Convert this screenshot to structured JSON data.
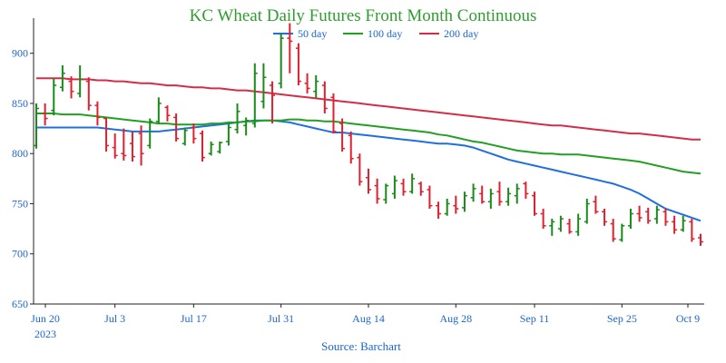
{
  "chart_data": {
    "type": "ohlc",
    "title": "KC Wheat Daily Futures Front Month Continuous",
    "source": "Source: Barchart",
    "xlabel": "",
    "ylabel": "",
    "ylim": [
      650,
      935
    ],
    "y_ticks": [
      650,
      700,
      750,
      800,
      850,
      900
    ],
    "x_ticks": [
      "Jun 20",
      "Jul 3",
      "Jul 17",
      "Jul 31",
      "Aug 14",
      "Aug 28",
      "Sep 11",
      "Sep 25",
      "Oct 9"
    ],
    "x_sub_label": "2023",
    "grid": false,
    "legend_position": "top",
    "colors": {
      "up": "#1a8a1a",
      "down": "#e0202e",
      "ma50": "#1f6fe0",
      "ma100": "#22a022",
      "ma200": "#d42d48",
      "title": "#2e9e2e",
      "text": "#1a66cc"
    },
    "moving_averages": [
      {
        "name": "50 day",
        "color": "#1f6fe0",
        "values": [
          826,
          826,
          826,
          826,
          826,
          826,
          826,
          826,
          825,
          824,
          823,
          822,
          822,
          822,
          822,
          823,
          824,
          825,
          826,
          827,
          828,
          829,
          830,
          831,
          832,
          833,
          833,
          833,
          832,
          831,
          829,
          827,
          825,
          823,
          821,
          821,
          820,
          819,
          818,
          817,
          816,
          815,
          814,
          813,
          812,
          811,
          810,
          810,
          809,
          808,
          806,
          803,
          800,
          797,
          794,
          792,
          790,
          788,
          786,
          784,
          782,
          780,
          778,
          776,
          774,
          772,
          770,
          767,
          764,
          760,
          755,
          750,
          745,
          742,
          739,
          736,
          733
        ]
      },
      {
        "name": "100 day",
        "color": "#22a022",
        "values": [
          840,
          840,
          840,
          839,
          839,
          839,
          838,
          837,
          836,
          835,
          834,
          833,
          832,
          831,
          830,
          830,
          829,
          829,
          829,
          829,
          830,
          830,
          831,
          831,
          832,
          832,
          833,
          833,
          833,
          834,
          834,
          833,
          833,
          832,
          832,
          831,
          830,
          829,
          828,
          827,
          826,
          825,
          824,
          823,
          822,
          821,
          819,
          818,
          816,
          814,
          812,
          811,
          809,
          807,
          805,
          803,
          802,
          801,
          800,
          800,
          799,
          799,
          799,
          798,
          797,
          796,
          795,
          794,
          793,
          792,
          790,
          788,
          786,
          784,
          782,
          781,
          780
        ]
      },
      {
        "name": "200 day",
        "color": "#d42d48",
        "values": [
          875,
          875,
          875,
          875,
          874,
          874,
          874,
          873,
          873,
          872,
          872,
          871,
          870,
          870,
          869,
          868,
          868,
          867,
          866,
          866,
          865,
          865,
          864,
          863,
          863,
          862,
          861,
          860,
          859,
          858,
          857,
          856,
          855,
          854,
          853,
          852,
          851,
          850,
          849,
          848,
          847,
          846,
          845,
          844,
          843,
          842,
          841,
          840,
          839,
          838,
          837,
          836,
          835,
          834,
          833,
          832,
          831,
          830,
          829,
          828,
          828,
          827,
          826,
          825,
          824,
          823,
          822,
          821,
          820,
          820,
          819,
          818,
          817,
          816,
          815,
          814,
          814
        ]
      }
    ],
    "candles": [
      {
        "date": "Jun 20",
        "high": 850,
        "low": 805,
        "open": 808,
        "close": 845
      },
      {
        "date": "Jun 21",
        "high": 850,
        "low": 828,
        "open": 840,
        "close": 835
      },
      {
        "date": "Jun 22",
        "high": 875,
        "low": 838,
        "open": 843,
        "close": 868
      },
      {
        "date": "Jun 23",
        "high": 888,
        "low": 862,
        "open": 866,
        "close": 880
      },
      {
        "date": "Jun 26",
        "high": 877,
        "low": 855,
        "open": 872,
        "close": 862
      },
      {
        "date": "Jun 27",
        "high": 888,
        "low": 856,
        "open": 860,
        "close": 874
      },
      {
        "date": "Jun 28",
        "high": 876,
        "low": 843,
        "open": 872,
        "close": 848
      },
      {
        "date": "Jun 29",
        "high": 852,
        "low": 828,
        "open": 848,
        "close": 836
      },
      {
        "date": "Jun 30",
        "high": 836,
        "low": 802,
        "open": 835,
        "close": 808
      },
      {
        "date": "Jul 3",
        "high": 820,
        "low": 795,
        "open": 806,
        "close": 798
      },
      {
        "date": "Jul 5",
        "high": 825,
        "low": 793,
        "open": 800,
        "close": 798
      },
      {
        "date": "Jul 6",
        "high": 822,
        "low": 792,
        "open": 810,
        "close": 797
      },
      {
        "date": "Jul 7",
        "high": 828,
        "low": 788,
        "open": 820,
        "close": 800
      },
      {
        "date": "Jul 10",
        "high": 835,
        "low": 805,
        "open": 808,
        "close": 832
      },
      {
        "date": "Jul 11",
        "high": 856,
        "low": 830,
        "open": 832,
        "close": 850
      },
      {
        "date": "Jul 12",
        "high": 848,
        "low": 832,
        "open": 846,
        "close": 838
      },
      {
        "date": "Jul 13",
        "high": 840,
        "low": 812,
        "open": 836,
        "close": 815
      },
      {
        "date": "Jul 14",
        "high": 826,
        "low": 808,
        "open": 810,
        "close": 823
      },
      {
        "date": "Jul 17",
        "high": 830,
        "low": 810,
        "open": 826,
        "close": 815
      },
      {
        "date": "Jul 18",
        "high": 823,
        "low": 792,
        "open": 820,
        "close": 796
      },
      {
        "date": "Jul 19",
        "high": 812,
        "low": 798,
        "open": 800,
        "close": 809
      },
      {
        "date": "Jul 20",
        "high": 812,
        "low": 800,
        "open": 802,
        "close": 811
      },
      {
        "date": "Jul 21",
        "high": 830,
        "low": 808,
        "open": 812,
        "close": 826
      },
      {
        "date": "Jul 24",
        "high": 850,
        "low": 820,
        "open": 824,
        "close": 842
      },
      {
        "date": "Jul 25",
        "high": 836,
        "low": 818,
        "open": 828,
        "close": 833
      },
      {
        "date": "Jul 26",
        "high": 890,
        "low": 826,
        "open": 830,
        "close": 880
      },
      {
        "date": "Jul 27",
        "high": 890,
        "low": 845,
        "open": 852,
        "close": 876
      },
      {
        "date": "Jul 28",
        "high": 872,
        "low": 830,
        "open": 868,
        "close": 858
      },
      {
        "date": "Jul 31",
        "high": 920,
        "low": 865,
        "open": 870,
        "close": 915
      },
      {
        "date": "Aug 1",
        "high": 930,
        "low": 880,
        "open": 915,
        "close": 912
      },
      {
        "date": "Aug 2",
        "high": 910,
        "low": 868,
        "open": 905,
        "close": 872
      },
      {
        "date": "Aug 3",
        "high": 880,
        "low": 860,
        "open": 870,
        "close": 865
      },
      {
        "date": "Aug 4",
        "high": 878,
        "low": 855,
        "open": 862,
        "close": 872
      },
      {
        "date": "Aug 7",
        "high": 872,
        "low": 840,
        "open": 868,
        "close": 845
      },
      {
        "date": "Aug 8",
        "high": 860,
        "low": 820,
        "open": 856,
        "close": 822
      },
      {
        "date": "Aug 9",
        "high": 835,
        "low": 802,
        "open": 830,
        "close": 805
      },
      {
        "date": "Aug 10",
        "high": 822,
        "low": 790,
        "open": 818,
        "close": 795
      },
      {
        "date": "Aug 11",
        "high": 800,
        "low": 768,
        "open": 796,
        "close": 772
      },
      {
        "date": "Aug 14",
        "high": 785,
        "low": 760,
        "open": 776,
        "close": 764
      },
      {
        "date": "Aug 15",
        "high": 775,
        "low": 750,
        "open": 768,
        "close": 755
      },
      {
        "date": "Aug 16",
        "high": 770,
        "low": 750,
        "open": 754,
        "close": 768
      },
      {
        "date": "Aug 17",
        "high": 778,
        "low": 755,
        "open": 760,
        "close": 773
      },
      {
        "date": "Aug 18",
        "high": 775,
        "low": 758,
        "open": 770,
        "close": 762
      },
      {
        "date": "Aug 21",
        "high": 780,
        "low": 760,
        "open": 762,
        "close": 775
      },
      {
        "date": "Aug 22",
        "high": 772,
        "low": 758,
        "open": 770,
        "close": 762
      },
      {
        "date": "Aug 23",
        "high": 768,
        "low": 745,
        "open": 764,
        "close": 748
      },
      {
        "date": "Aug 24",
        "high": 752,
        "low": 735,
        "open": 748,
        "close": 740
      },
      {
        "date": "Aug 25",
        "high": 755,
        "low": 738,
        "open": 740,
        "close": 750
      },
      {
        "date": "Aug 28",
        "high": 758,
        "low": 740,
        "open": 748,
        "close": 745
      },
      {
        "date": "Aug 29",
        "high": 762,
        "low": 742,
        "open": 746,
        "close": 758
      },
      {
        "date": "Aug 30",
        "high": 770,
        "low": 752,
        "open": 756,
        "close": 765
      },
      {
        "date": "Aug 31",
        "high": 768,
        "low": 750,
        "open": 760,
        "close": 752
      },
      {
        "date": "Sep 1",
        "high": 765,
        "low": 745,
        "open": 752,
        "close": 760
      },
      {
        "date": "Sep 5",
        "high": 772,
        "low": 748,
        "open": 762,
        "close": 752
      },
      {
        "date": "Sep 6",
        "high": 766,
        "low": 748,
        "open": 752,
        "close": 760
      },
      {
        "date": "Sep 7",
        "high": 770,
        "low": 750,
        "open": 758,
        "close": 765
      },
      {
        "date": "Sep 8",
        "high": 772,
        "low": 755,
        "open": 770,
        "close": 760
      },
      {
        "date": "Sep 11",
        "high": 762,
        "low": 738,
        "open": 758,
        "close": 740
      },
      {
        "date": "Sep 12",
        "high": 745,
        "low": 725,
        "open": 740,
        "close": 728
      },
      {
        "date": "Sep 13",
        "high": 735,
        "low": 718,
        "open": 728,
        "close": 732
      },
      {
        "date": "Sep 14",
        "high": 738,
        "low": 722,
        "open": 725,
        "close": 735
      },
      {
        "date": "Sep 15",
        "high": 735,
        "low": 720,
        "open": 730,
        "close": 722
      },
      {
        "date": "Sep 18",
        "high": 740,
        "low": 718,
        "open": 722,
        "close": 735
      },
      {
        "date": "Sep 19",
        "high": 755,
        "low": 730,
        "open": 732,
        "close": 750
      },
      {
        "date": "Sep 20",
        "high": 758,
        "low": 740,
        "open": 752,
        "close": 742
      },
      {
        "date": "Sep 21",
        "high": 745,
        "low": 728,
        "open": 742,
        "close": 732
      },
      {
        "date": "Sep 22",
        "high": 735,
        "low": 712,
        "open": 730,
        "close": 715
      },
      {
        "date": "Sep 25",
        "high": 730,
        "low": 712,
        "open": 714,
        "close": 728
      },
      {
        "date": "Sep 26",
        "high": 745,
        "low": 725,
        "open": 728,
        "close": 740
      },
      {
        "date": "Sep 27",
        "high": 748,
        "low": 732,
        "open": 740,
        "close": 736
      },
      {
        "date": "Sep 28",
        "high": 746,
        "low": 730,
        "open": 742,
        "close": 733
      },
      {
        "date": "Sep 29",
        "high": 748,
        "low": 730,
        "open": 735,
        "close": 744
      },
      {
        "date": "Oct 2",
        "high": 745,
        "low": 728,
        "open": 742,
        "close": 732
      },
      {
        "date": "Oct 3",
        "high": 738,
        "low": 720,
        "open": 732,
        "close": 724
      },
      {
        "date": "Oct 4",
        "high": 738,
        "low": 722,
        "open": 724,
        "close": 733
      },
      {
        "date": "Oct 5",
        "high": 735,
        "low": 712,
        "open": 732,
        "close": 715
      },
      {
        "date": "Oct 6",
        "high": 720,
        "low": 708,
        "open": 716,
        "close": 712
      }
    ]
  }
}
